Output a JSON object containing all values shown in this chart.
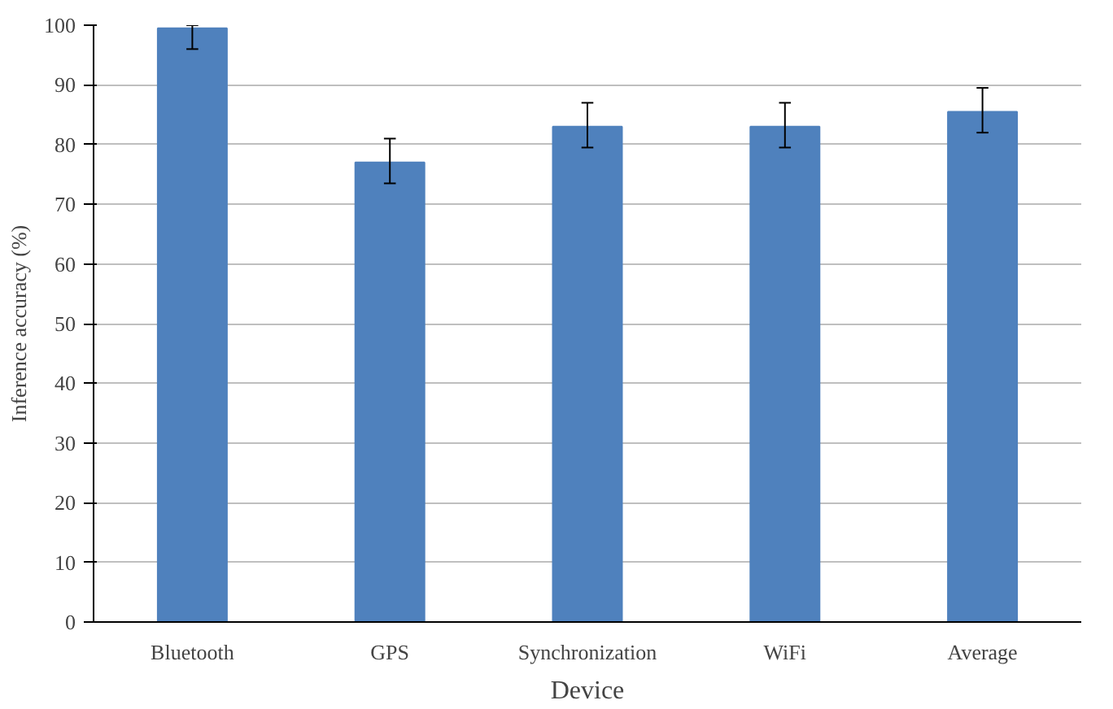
{
  "chart_data": {
    "type": "bar",
    "xlabel": "Device",
    "ylabel": "Inference accuracy (%)",
    "categories": [
      "Bluetooth",
      "GPS",
      "Synchronization",
      "WiFi",
      "Average"
    ],
    "values": [
      99.5,
      77,
      83,
      83,
      85.5
    ],
    "errors": [
      [
        96,
        100
      ],
      [
        73.5,
        81
      ],
      [
        79.5,
        87
      ],
      [
        79.5,
        87
      ],
      [
        82,
        89.5
      ]
    ],
    "color": "#4f81bd",
    "ylim": [
      0,
      100
    ],
    "yticks": [
      0,
      10,
      20,
      30,
      40,
      50,
      60,
      70,
      80,
      90,
      100
    ],
    "grid": "y"
  }
}
